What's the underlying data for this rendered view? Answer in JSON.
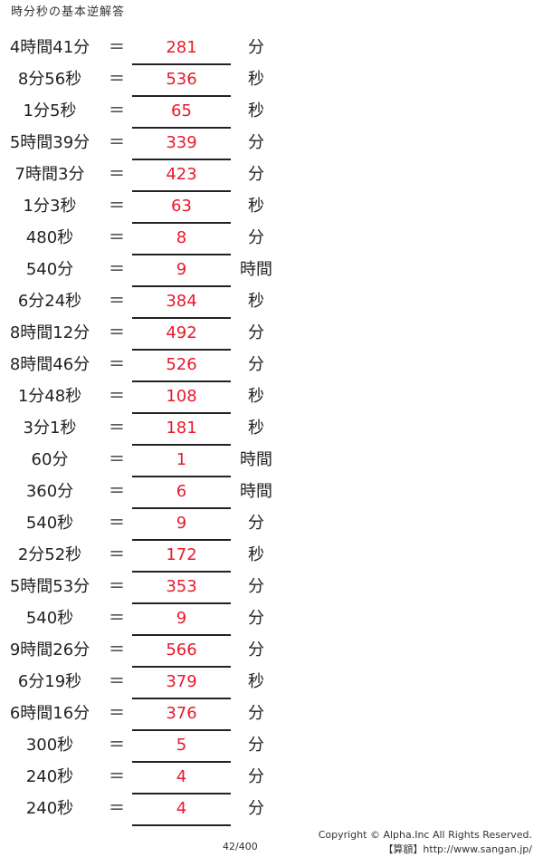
{
  "title": "時分秒の基本逆解答",
  "equals": "＝",
  "rows": [
    {
      "q": "4時間41分",
      "a": "281",
      "u": "分"
    },
    {
      "q": "8分56秒",
      "a": "536",
      "u": "秒"
    },
    {
      "q": "1分5秒",
      "a": "65",
      "u": "秒"
    },
    {
      "q": "5時間39分",
      "a": "339",
      "u": "分"
    },
    {
      "q": "7時間3分",
      "a": "423",
      "u": "分"
    },
    {
      "q": "1分3秒",
      "a": "63",
      "u": "秒"
    },
    {
      "q": "480秒",
      "a": "8",
      "u": "分"
    },
    {
      "q": "540分",
      "a": "9",
      "u": "時間"
    },
    {
      "q": "6分24秒",
      "a": "384",
      "u": "秒"
    },
    {
      "q": "8時間12分",
      "a": "492",
      "u": "分"
    },
    {
      "q": "8時間46分",
      "a": "526",
      "u": "分"
    },
    {
      "q": "1分48秒",
      "a": "108",
      "u": "秒"
    },
    {
      "q": "3分1秒",
      "a": "181",
      "u": "秒"
    },
    {
      "q": "60分",
      "a": "1",
      "u": "時間"
    },
    {
      "q": "360分",
      "a": "6",
      "u": "時間"
    },
    {
      "q": "540秒",
      "a": "9",
      "u": "分"
    },
    {
      "q": "2分52秒",
      "a": "172",
      "u": "秒"
    },
    {
      "q": "5時間53分",
      "a": "353",
      "u": "分"
    },
    {
      "q": "540秒",
      "a": "9",
      "u": "分"
    },
    {
      "q": "9時間26分",
      "a": "566",
      "u": "分"
    },
    {
      "q": "6分19秒",
      "a": "379",
      "u": "秒"
    },
    {
      "q": "6時間16分",
      "a": "376",
      "u": "分"
    },
    {
      "q": "300秒",
      "a": "5",
      "u": "分"
    },
    {
      "q": "240秒",
      "a": "4",
      "u": "分"
    },
    {
      "q": "240秒",
      "a": "4",
      "u": "分"
    }
  ],
  "footer": {
    "page": "42/400",
    "copyright": "Copyright © Alpha.Inc All Rights Reserved.",
    "site": "【算額】http://www.sangan.jp/"
  },
  "colors": {
    "answer": "#e8192c"
  }
}
